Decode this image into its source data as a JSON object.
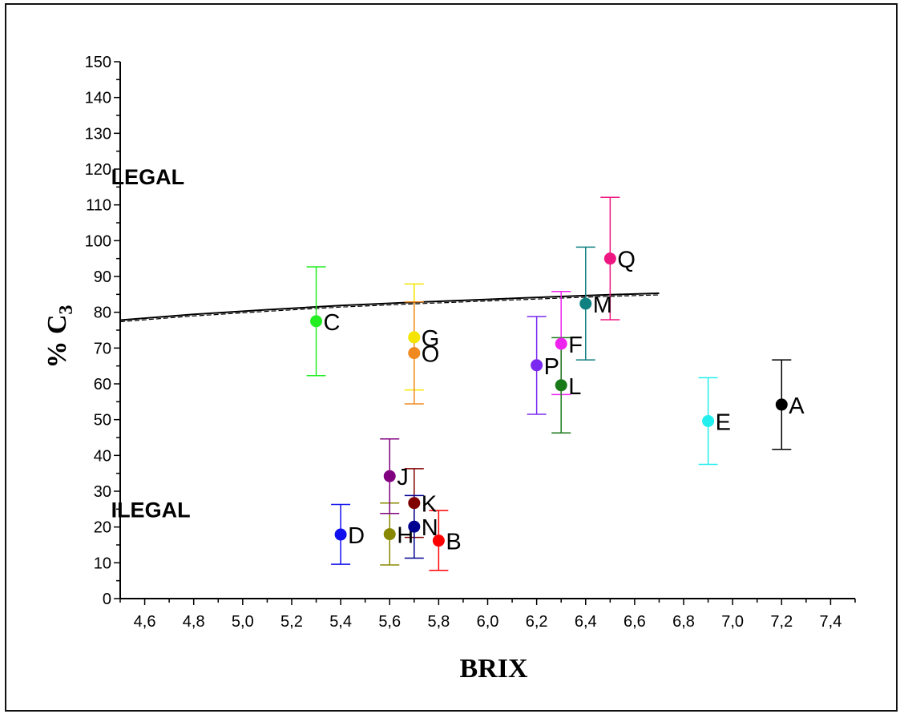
{
  "chart_data": {
    "type": "scatter",
    "title": "",
    "xlabel": "BRIX",
    "ylabel_main": "% C",
    "ylabel_sub": "3",
    "xlim": [
      4.5,
      7.5
    ],
    "ylim": [
      0,
      150
    ],
    "x_ticks": [
      "4,6",
      "4,8",
      "5,0",
      "5,2",
      "5,4",
      "5,6",
      "5,8",
      "6,0",
      "6,2",
      "6,4",
      "6,6",
      "6,8",
      "7,0",
      "7,2",
      "7,4"
    ],
    "x_tick_values": [
      4.6,
      4.8,
      5.0,
      5.2,
      5.4,
      5.6,
      5.8,
      6.0,
      6.2,
      6.4,
      6.6,
      6.8,
      7.0,
      7.2,
      7.4
    ],
    "y_ticks": [
      "0",
      "10",
      "20",
      "30",
      "40",
      "50",
      "60",
      "70",
      "80",
      "90",
      "100",
      "110",
      "120",
      "130",
      "140",
      "150"
    ],
    "y_tick_values": [
      0,
      10,
      20,
      30,
      40,
      50,
      60,
      70,
      80,
      90,
      100,
      110,
      120,
      130,
      140,
      150
    ],
    "grid": false,
    "annotations": [
      {
        "text": "LEGAL",
        "x": 4.6,
        "y": 118
      },
      {
        "text": "ILEGAL",
        "x": 4.6,
        "y": 25
      }
    ],
    "threshold_line": {
      "x": [
        4.5,
        4.8,
        5.1,
        5.4,
        5.7,
        6.0,
        6.3,
        6.5,
        6.7
      ],
      "y": [
        77.8,
        79.4,
        80.7,
        81.9,
        82.8,
        83.6,
        84.4,
        84.9,
        85.3
      ]
    },
    "points": [
      {
        "label": "A",
        "x": 7.2,
        "y": 54.2,
        "err_low": 41.7,
        "err_high": 66.7,
        "color": "#000000"
      },
      {
        "label": "B",
        "x": 5.8,
        "y": 16.2,
        "err_low": 7.9,
        "err_high": 24.6,
        "color": "#ff0000"
      },
      {
        "label": "C",
        "x": 5.3,
        "y": 77.5,
        "err_low": 62.3,
        "err_high": 92.7,
        "color": "#22ee22"
      },
      {
        "label": "D",
        "x": 5.4,
        "y": 17.9,
        "err_low": 9.6,
        "err_high": 26.3,
        "color": "#1010ee"
      },
      {
        "label": "E",
        "x": 6.9,
        "y": 49.6,
        "err_low": 37.5,
        "err_high": 61.7,
        "color": "#22eeee"
      },
      {
        "label": "F",
        "x": 6.3,
        "y": 71.2,
        "err_low": 57.0,
        "err_high": 85.8,
        "color": "#ee22ee"
      },
      {
        "label": "G",
        "x": 5.7,
        "y": 73.0,
        "err_low": 58.3,
        "err_high": 87.9,
        "color": "#f4e400"
      },
      {
        "label": "H",
        "x": 5.6,
        "y": 18.0,
        "err_low": 9.4,
        "err_high": 26.7,
        "color": "#888800"
      },
      {
        "label": "J",
        "x": 5.6,
        "y": 34.2,
        "err_low": 23.8,
        "err_high": 44.6,
        "color": "#800080"
      },
      {
        "label": "K",
        "x": 5.7,
        "y": 26.7,
        "err_low": 17.1,
        "err_high": 36.3,
        "color": "#800000"
      },
      {
        "label": "L",
        "x": 6.3,
        "y": 59.6,
        "err_low": 46.3,
        "err_high": 72.9,
        "color": "#1a7a1a"
      },
      {
        "label": "M",
        "x": 6.4,
        "y": 82.4,
        "err_low": 66.7,
        "err_high": 98.2,
        "color": "#108080"
      },
      {
        "label": "N",
        "x": 5.7,
        "y": 20.1,
        "err_low": 11.3,
        "err_high": 28.8,
        "color": "#000090"
      },
      {
        "label": "O",
        "x": 5.7,
        "y": 68.6,
        "err_low": 54.4,
        "err_high": 82.9,
        "color": "#f08a20"
      },
      {
        "label": "P",
        "x": 6.2,
        "y": 65.2,
        "err_low": 51.5,
        "err_high": 78.8,
        "color": "#7a2af0"
      },
      {
        "label": "Q",
        "x": 6.5,
        "y": 95.0,
        "err_low": 77.9,
        "err_high": 112.1,
        "color": "#ee1680"
      }
    ]
  }
}
